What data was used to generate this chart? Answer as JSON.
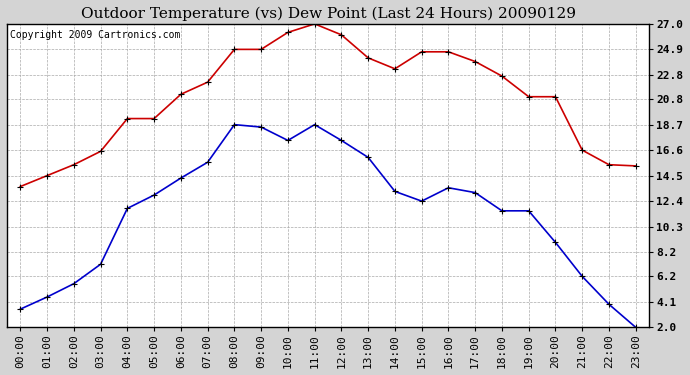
{
  "title": "Outdoor Temperature (vs) Dew Point (Last 24 Hours) 20090129",
  "copyright": "Copyright 2009 Cartronics.com",
  "x_labels": [
    "00:00",
    "01:00",
    "02:00",
    "03:00",
    "04:00",
    "05:00",
    "06:00",
    "07:00",
    "08:00",
    "09:00",
    "10:00",
    "11:00",
    "12:00",
    "13:00",
    "14:00",
    "15:00",
    "16:00",
    "17:00",
    "18:00",
    "19:00",
    "20:00",
    "21:00",
    "22:00",
    "23:00"
  ],
  "temp_values": [
    13.6,
    14.5,
    15.4,
    16.5,
    19.2,
    19.2,
    21.2,
    22.2,
    24.9,
    24.9,
    26.3,
    27.0,
    26.1,
    24.2,
    23.3,
    24.7,
    24.7,
    23.9,
    22.7,
    21.0,
    21.0,
    16.6,
    15.4,
    15.3
  ],
  "dew_values": [
    3.5,
    4.5,
    5.6,
    7.2,
    11.8,
    12.9,
    14.3,
    15.6,
    18.7,
    18.5,
    17.4,
    18.7,
    17.4,
    16.0,
    13.2,
    12.4,
    13.5,
    13.1,
    11.6,
    11.6,
    9.0,
    6.2,
    3.9,
    2.0
  ],
  "temp_color": "#cc0000",
  "dew_color": "#0000cc",
  "bg_color": "#d4d4d4",
  "plot_bg_color": "#ffffff",
  "grid_color": "#aaaaaa",
  "y_ticks": [
    2.0,
    4.1,
    6.2,
    8.2,
    10.3,
    12.4,
    14.5,
    16.6,
    18.7,
    20.8,
    22.8,
    24.9,
    27.0
  ],
  "ylim": [
    2.0,
    27.0
  ],
  "title_fontsize": 11,
  "copyright_fontsize": 7,
  "tick_fontsize": 8,
  "marker": "+",
  "marker_size": 5,
  "line_width": 1.2
}
